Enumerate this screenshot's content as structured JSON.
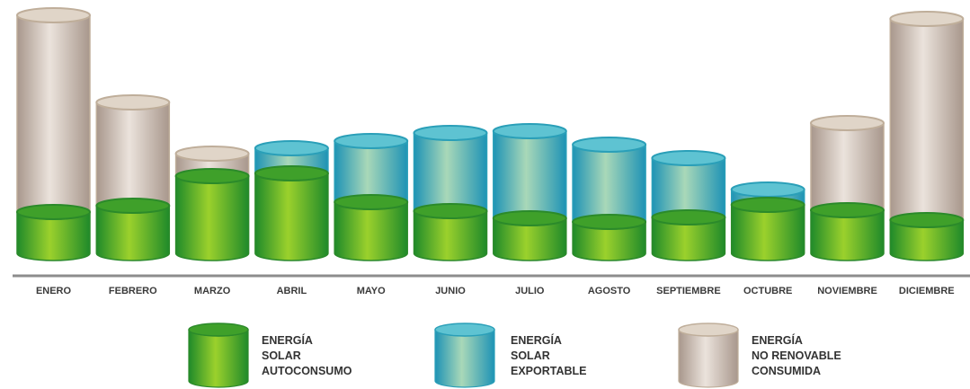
{
  "chart_data": {
    "type": "bar",
    "stacked": true,
    "style": "3d-cylinder",
    "categories": [
      "ENERO",
      "FEBRERO",
      "MARZO",
      "ABRIL",
      "MAYO",
      "JUNIO",
      "JULIO",
      "AGOSTO",
      "SEPTIEMBRE",
      "OCTUBRE",
      "NOVIEMBRE",
      "DICIEMBRE"
    ],
    "series": [
      {
        "key": "autoconsumo",
        "name_lines": [
          "ENERGÍA",
          "SOLAR",
          "AUTOCONSUMO"
        ],
        "colors": {
          "main": "#5aab22",
          "light": "#9bd12c",
          "dark": "#1f8a2a",
          "top": "#3fa02a",
          "rim": "#2b8a2a"
        },
        "values": [
          46,
          53,
          86,
          89,
          57,
          47,
          39,
          35,
          40,
          54,
          48,
          37
        ]
      },
      {
        "key": "exportable",
        "name_lines": [
          "ENERGÍA",
          "SOLAR",
          "EXPORTABLE"
        ],
        "colors": {
          "main": "#3bb3c4",
          "light": "#a9d8b8",
          "dark": "#1e93b5",
          "top": "#5ec3d2",
          "rim": "#2a9fb8"
        },
        "values": [
          0,
          0,
          0,
          28,
          68,
          87,
          97,
          86,
          66,
          17,
          0,
          0
        ]
      },
      {
        "key": "no_renovable",
        "name_lines": [
          "ENERGÍA",
          "NO RENOVABLE",
          "CONSUMIDA"
        ],
        "colors": {
          "main": "#cdbfb6",
          "light": "#ebe3dc",
          "dark": "#a8978c",
          "top": "#e0d5c8",
          "rim": "#bfae9a"
        },
        "values": [
          219,
          115,
          25,
          0,
          0,
          0,
          0,
          0,
          0,
          0,
          97,
          224
        ]
      }
    ],
    "ylim": [
      0,
      280
    ],
    "xlabel": "",
    "ylabel": "",
    "title": "",
    "grid": false,
    "legend_position": "bottom"
  }
}
